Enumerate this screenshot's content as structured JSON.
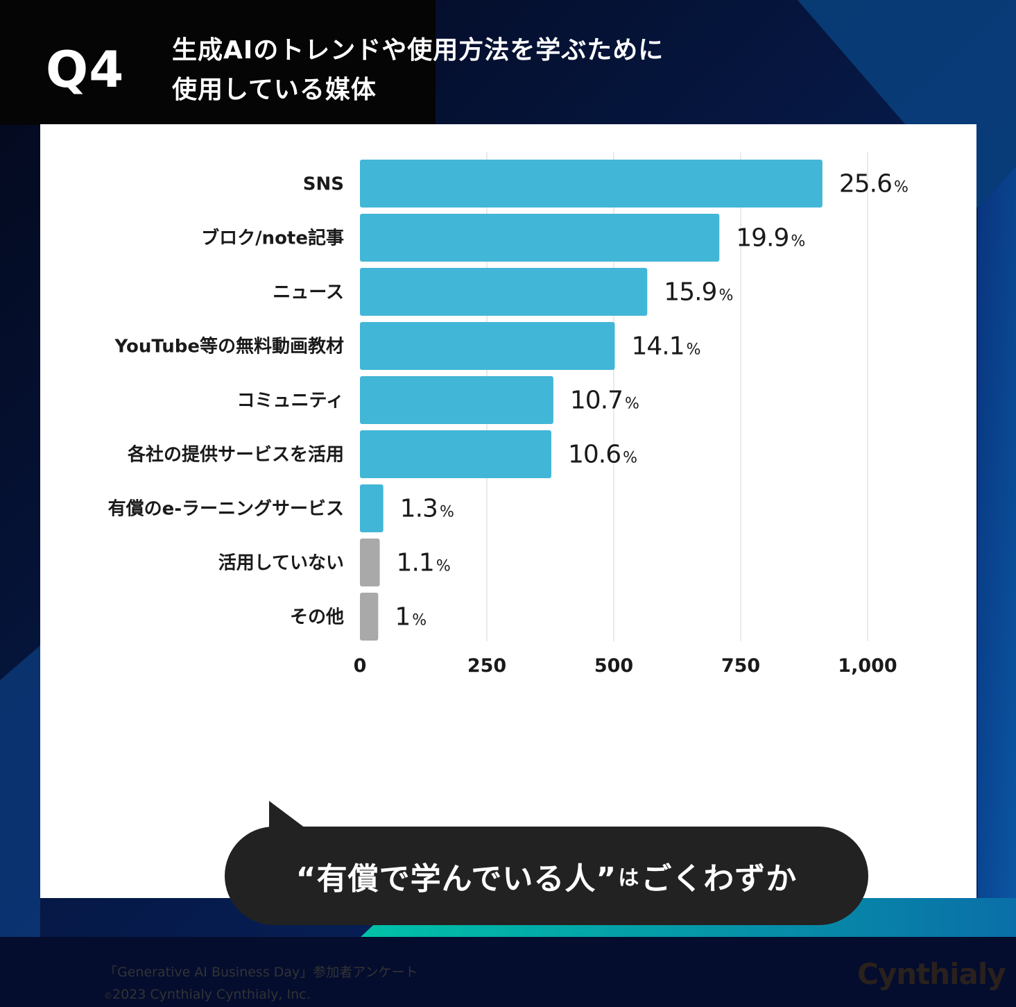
{
  "header": {
    "question_number": "Q4",
    "title_line1": "生成AIのトレンドや使用方法を学ぶために",
    "title_line2": "使用している媒体"
  },
  "colors": {
    "bar_primary": "#42b6d6",
    "bar_secondary": "#a9a9a9",
    "header_bg": "#050505",
    "bubble_bg": "#222222"
  },
  "chart_data": {
    "type": "bar",
    "orientation": "horizontal",
    "categories": [
      "SNS",
      "ブロク/note記事",
      "ニュース",
      "YouTube等の無料動画教材",
      "コミュニティ",
      "各社の提供サービスを活用",
      "有償のe-ラーニングサービス",
      "活用していない",
      "その他"
    ],
    "values": [
      911,
      708,
      566,
      502,
      381,
      377,
      46,
      39,
      36
    ],
    "percent_labels": [
      "25.6",
      "19.9",
      "15.9",
      "14.1",
      "10.7",
      "10.6",
      "1.3",
      "1.1",
      "1"
    ],
    "percent_unit": "%",
    "bar_colors": [
      "primary",
      "primary",
      "primary",
      "primary",
      "primary",
      "primary",
      "primary",
      "secondary",
      "secondary"
    ],
    "x_ticks": [
      0,
      250,
      500,
      750,
      1000
    ],
    "x_tick_labels": [
      "0",
      "250",
      "500",
      "750",
      "1,000"
    ],
    "xlim": [
      0,
      1000
    ],
    "grid": true,
    "legend": "none"
  },
  "callout": {
    "part1": "“有償で学んでいる人”",
    "part2": "は",
    "part3": "ごくわずか"
  },
  "footer": {
    "source": "「Generative AI Business Day」参加者アンケート",
    "copyright_symbol": "©",
    "copyright": "2023 Cynthialy Cynthialy, Inc.",
    "logo": "Cynthialy"
  }
}
